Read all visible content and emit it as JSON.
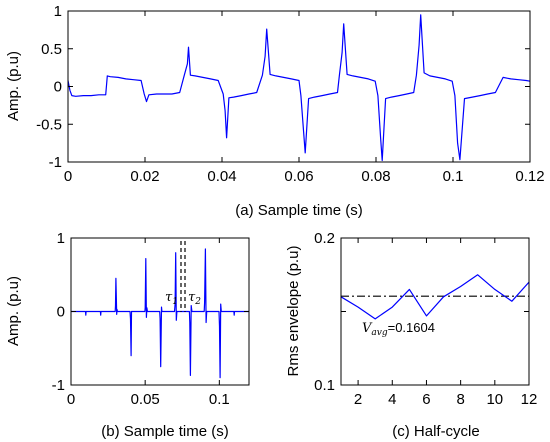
{
  "chart_data": [
    {
      "id": "a",
      "type": "line",
      "xlabel": "(a) Sample time (s)",
      "ylabel": "Amp. (p.u)",
      "xlim": [
        0,
        0.12
      ],
      "ylim": [
        -1,
        1
      ],
      "xticks": [
        0,
        0.02,
        0.04,
        0.06,
        0.08,
        0.1,
        0.12
      ],
      "xtick_labels": [
        "0",
        "0.02",
        "0.04",
        "0.06",
        "0.08",
        "0.1",
        "0.12"
      ],
      "yticks": [
        -1,
        -0.5,
        0,
        0.5,
        1
      ],
      "ytick_labels": [
        "-1",
        "-0.5",
        "0",
        "0.5",
        "1"
      ],
      "grid": false,
      "series": [
        {
          "color": "#0000ff",
          "x": [
            0,
            0.0005,
            0.001,
            0.002,
            0.004,
            0.006,
            0.008,
            0.0098,
            0.0102,
            0.011,
            0.013,
            0.015,
            0.017,
            0.019,
            0.0198,
            0.0204,
            0.021,
            0.023,
            0.025,
            0.027,
            0.029,
            0.0302,
            0.031,
            0.0313,
            0.0318,
            0.033,
            0.035,
            0.037,
            0.039,
            0.0403,
            0.0408,
            0.0412,
            0.0418,
            0.043,
            0.045,
            0.047,
            0.049,
            0.0505,
            0.0512,
            0.0516,
            0.0525,
            0.054,
            0.056,
            0.058,
            0.06,
            0.0605,
            0.0612,
            0.0616,
            0.0625,
            0.064,
            0.066,
            0.068,
            0.07,
            0.0705,
            0.0712,
            0.0716,
            0.0725,
            0.074,
            0.076,
            0.078,
            0.0798,
            0.0805,
            0.0812,
            0.0816,
            0.0825,
            0.084,
            0.086,
            0.088,
            0.0898,
            0.0905,
            0.0912,
            0.0916,
            0.0925,
            0.094,
            0.096,
            0.098,
            0.0998,
            0.1005,
            0.1012,
            0.1018,
            0.103,
            0.105,
            0.107,
            0.109,
            0.111,
            0.113,
            0.115,
            0.117,
            0.119,
            0.12
          ],
          "y": [
            0.08,
            -0.05,
            -0.12,
            -0.13,
            -0.12,
            -0.12,
            -0.11,
            -0.11,
            0.14,
            0.13,
            0.12,
            0.1,
            0.09,
            0.08,
            -0.1,
            -0.2,
            -0.11,
            -0.1,
            -0.1,
            -0.1,
            -0.08,
            0.15,
            0.3,
            0.52,
            0.15,
            0.14,
            0.12,
            0.1,
            0.08,
            -0.1,
            -0.32,
            -0.68,
            -0.15,
            -0.14,
            -0.12,
            -0.1,
            -0.08,
            0.15,
            0.4,
            0.76,
            0.16,
            0.14,
            0.12,
            0.1,
            0.08,
            -0.12,
            -0.6,
            -0.88,
            -0.16,
            -0.14,
            -0.12,
            -0.1,
            -0.08,
            0.15,
            0.45,
            0.83,
            0.16,
            0.14,
            0.12,
            0.1,
            0.07,
            -0.12,
            -0.68,
            -0.98,
            -0.16,
            -0.14,
            -0.12,
            -0.1,
            -0.08,
            0.15,
            0.55,
            0.95,
            0.18,
            0.14,
            0.12,
            0.1,
            0.07,
            -0.12,
            -0.75,
            -0.97,
            -0.16,
            -0.14,
            -0.12,
            -0.1,
            -0.08,
            0.12,
            0.1,
            0.09,
            0.08,
            0.07
          ]
        }
      ]
    },
    {
      "id": "b",
      "type": "line",
      "xlabel": "(b) Sample time (s)",
      "ylabel": "Amp. (p.u)",
      "xlim": [
        0,
        0.12
      ],
      "ylim": [
        -1,
        1
      ],
      "xticks": [
        0,
        0.05,
        0.1
      ],
      "xtick_labels": [
        "0",
        "0.05",
        "0.1"
      ],
      "yticks": [
        -1,
        0,
        1
      ],
      "ytick_labels": [
        "-1",
        "0",
        "1"
      ],
      "grid": false,
      "annotations": [
        {
          "text": "τ",
          "sub": "1",
          "x": 0.07
        },
        {
          "text": "τ",
          "sub": "2",
          "x": 0.073
        }
      ],
      "vlines": [
        0.07,
        0.073
      ],
      "series": [
        {
          "color": "#0000ff",
          "x": [
            0,
            0.0098,
            0.01,
            0.0102,
            0.0198,
            0.02,
            0.0202,
            0.0298,
            0.03,
            0.0303,
            0.0308,
            0.031,
            0.0313,
            0.0398,
            0.0401,
            0.0405,
            0.0408,
            0.0498,
            0.05,
            0.0504,
            0.0508,
            0.0512,
            0.0515,
            0.0598,
            0.0601,
            0.0605,
            0.061,
            0.0613,
            0.0698,
            0.0702,
            0.0706,
            0.071,
            0.0714,
            0.0798,
            0.0801,
            0.0805,
            0.081,
            0.0815,
            0.0898,
            0.0901,
            0.0906,
            0.0911,
            0.0915,
            0.0998,
            0.1001,
            0.1005,
            0.1009,
            0.1013,
            0.1098,
            0.11,
            0.1102,
            0.12
          ],
          "y": [
            0,
            0,
            -0.05,
            0,
            0,
            -0.05,
            0,
            0,
            0.08,
            0.45,
            -0.04,
            0.03,
            0,
            0,
            -0.1,
            -0.6,
            0,
            0,
            0.05,
            0.72,
            -0.08,
            0.05,
            0,
            0,
            -0.1,
            -0.75,
            0.06,
            0,
            0,
            0.1,
            0.8,
            -0.12,
            0,
            0,
            -0.15,
            -0.87,
            0.08,
            0,
            0,
            0.12,
            0.85,
            -0.15,
            0,
            0,
            -0.2,
            -0.9,
            0.1,
            0,
            0,
            -0.05,
            0,
            0
          ]
        }
      ]
    },
    {
      "id": "c",
      "type": "line",
      "xlabel": "(c) Half-cycle",
      "ylabel": "Rms envelope (p.u)",
      "xlim": [
        1,
        12
      ],
      "ylim": [
        0.1,
        0.2
      ],
      "xticks": [
        2,
        4,
        6,
        8,
        10,
        12
      ],
      "xtick_labels": [
        "2",
        "4",
        "6",
        "8",
        "10",
        "12"
      ],
      "yticks": [
        0.1,
        0.15,
        0.2
      ],
      "ytick_labels": [
        "0.1",
        "",
        "0.2"
      ],
      "grid": false,
      "reference_line": {
        "y": 0.1604,
        "style": "dash-dot"
      },
      "annotation": {
        "main": "V",
        "sub": "avg",
        "value": "=0.1604"
      },
      "series": [
        {
          "color": "#0000ff",
          "x": [
            1,
            2,
            3,
            4,
            5,
            6,
            7,
            8,
            9,
            10,
            11,
            12
          ],
          "y": [
            0.16,
            0.153,
            0.145,
            0.153,
            0.165,
            0.147,
            0.16,
            0.167,
            0.175,
            0.165,
            0.157,
            0.17
          ]
        }
      ]
    }
  ]
}
